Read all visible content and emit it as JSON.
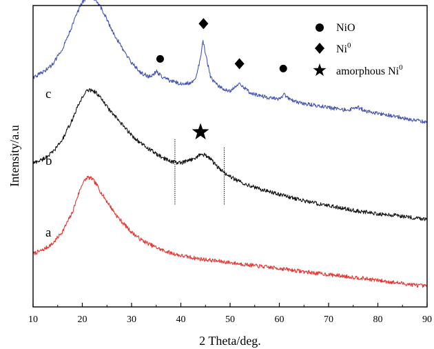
{
  "chart_data": {
    "type": "line",
    "title": "",
    "xlabel": "2 Theta/deg.",
    "ylabel": "Intensity/a.u",
    "xlim": [
      10,
      90
    ],
    "ylim": [
      0,
      100
    ],
    "x_ticks": [
      10,
      20,
      30,
      40,
      50,
      60,
      70,
      80,
      90
    ],
    "y_ticks_shown": false,
    "grid": false,
    "legend_position": "top-right",
    "legend": [
      {
        "marker": "circle",
        "label": "NiO"
      },
      {
        "marker": "diamond",
        "label": "Ni",
        "sup": "0"
      },
      {
        "marker": "star",
        "label": "amorphous Ni",
        "sup": "0"
      }
    ],
    "series": [
      {
        "label": "a",
        "color": "#e8332f",
        "x": [
          10,
          12,
          14,
          16,
          18,
          19,
          20,
          21,
          22,
          23,
          24,
          25,
          26,
          27,
          28,
          30,
          32,
          34,
          36,
          38,
          40,
          44,
          48,
          52,
          56,
          60,
          64,
          68,
          72,
          76,
          80,
          84,
          88,
          90
        ],
        "y": [
          17.6,
          18.9,
          21.0,
          25.1,
          31.4,
          36.5,
          40.9,
          43.0,
          42.5,
          40.3,
          37.4,
          35.0,
          32.6,
          30.2,
          28.3,
          24.8,
          22.2,
          20.5,
          19.0,
          17.9,
          17.0,
          15.9,
          15.1,
          14.3,
          13.5,
          12.8,
          11.9,
          11.1,
          10.4,
          9.7,
          8.8,
          8.0,
          7.2,
          6.8
        ]
      },
      {
        "label": "b",
        "color": "#111111",
        "x": [
          10,
          12,
          14,
          16,
          18,
          19,
          20,
          21,
          22,
          23,
          24,
          25,
          26,
          28,
          30,
          32,
          34,
          36,
          38,
          40,
          41,
          42,
          43,
          44,
          45,
          46,
          47,
          48,
          50,
          52,
          56,
          60,
          64,
          68,
          72,
          76,
          80,
          84,
          88,
          90
        ],
        "y": [
          47.7,
          49.0,
          51.3,
          55.6,
          62.3,
          66.2,
          69.7,
          71.8,
          72.0,
          70.8,
          68.7,
          66.4,
          64.4,
          60.6,
          57.0,
          54.1,
          51.9,
          49.7,
          48.3,
          47.7,
          48.2,
          48.8,
          49.6,
          50.6,
          50.4,
          49.1,
          47.3,
          45.5,
          43.2,
          41.5,
          39.1,
          37.4,
          35.6,
          34.2,
          33.0,
          31.8,
          30.9,
          30.3,
          29.5,
          29.1
        ]
      },
      {
        "label": "c",
        "color": "#4455b3",
        "x": [
          10,
          12,
          14,
          16,
          18,
          19,
          20,
          21,
          22,
          23,
          24,
          25,
          26,
          28,
          30,
          32,
          34,
          35,
          36,
          37,
          38,
          40,
          42,
          43,
          44,
          44.5,
          45,
          46,
          47,
          48,
          50,
          51,
          52,
          53,
          54,
          56,
          58,
          60,
          61,
          62,
          64,
          66,
          68,
          70,
          72,
          74,
          76,
          78,
          80,
          84,
          88,
          90
        ],
        "y": [
          76.2,
          77.8,
          80.5,
          85.9,
          93.5,
          97.8,
          101.0,
          102.9,
          102.9,
          101.3,
          98.6,
          95.4,
          91.9,
          86.0,
          80.9,
          77.5,
          76.2,
          78.3,
          76.5,
          75.7,
          74.9,
          74.1,
          74.3,
          75.4,
          82.8,
          88.2,
          84.1,
          76.5,
          74.1,
          72.8,
          71.7,
          73.0,
          74.3,
          72.5,
          71.2,
          70.1,
          69.3,
          68.8,
          70.4,
          68.8,
          67.7,
          67.2,
          66.7,
          66.1,
          65.6,
          65.3,
          66.1,
          64.7,
          64.2,
          63.1,
          61.8,
          61.2
        ]
      }
    ],
    "markers": [
      {
        "type": "circle",
        "x": 35.8,
        "y": 82.3
      },
      {
        "type": "diamond",
        "x": 44.6,
        "y": 94.0
      },
      {
        "type": "diamond",
        "x": 51.9,
        "y": 80.7
      },
      {
        "type": "circle",
        "x": 60.8,
        "y": 79.1
      },
      {
        "type": "star",
        "x": 44.0,
        "y": 58.0
      }
    ],
    "guide_lines": [
      {
        "x": 38.8,
        "y_from": 34.0,
        "y_to": 56.0,
        "style": "dotted"
      },
      {
        "x": 48.8,
        "y_from": 34.0,
        "y_to": 53.0,
        "style": "dotted"
      }
    ]
  }
}
